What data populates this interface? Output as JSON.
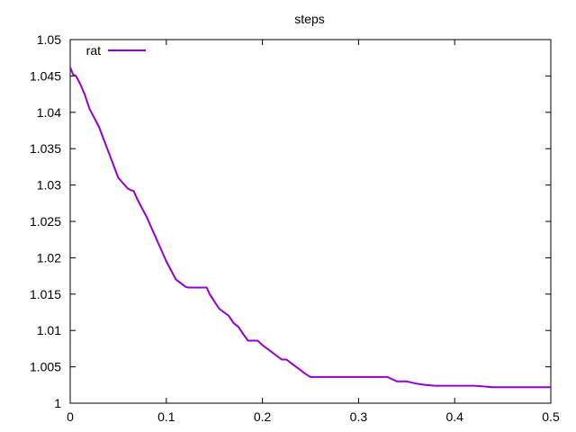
{
  "chart_data": {
    "type": "line",
    "title": "steps",
    "xlabel": "",
    "ylabel": "",
    "xlim": [
      0,
      0.5
    ],
    "ylim": [
      1,
      1.05
    ],
    "x_ticks": [
      {
        "value": 0,
        "label": "0"
      },
      {
        "value": 0.1,
        "label": "0.1"
      },
      {
        "value": 0.2,
        "label": "0.2"
      },
      {
        "value": 0.3,
        "label": "0.3"
      },
      {
        "value": 0.4,
        "label": "0.4"
      },
      {
        "value": 0.5,
        "label": "0.5"
      }
    ],
    "y_ticks": [
      {
        "value": 1,
        "label": "1"
      },
      {
        "value": 1.005,
        "label": "1.005"
      },
      {
        "value": 1.01,
        "label": "1.01"
      },
      {
        "value": 1.015,
        "label": "1.015"
      },
      {
        "value": 1.02,
        "label": "1.02"
      },
      {
        "value": 1.025,
        "label": "1.025"
      },
      {
        "value": 1.03,
        "label": "1.03"
      },
      {
        "value": 1.035,
        "label": "1.035"
      },
      {
        "value": 1.04,
        "label": "1.04"
      },
      {
        "value": 1.045,
        "label": "1.045"
      },
      {
        "value": 1.05,
        "label": "1.05"
      }
    ],
    "grid": false,
    "legend_position": "top-left",
    "series": [
      {
        "name": "rat",
        "color": "#9400d3",
        "x": [
          0,
          0.003,
          0.006,
          0.01,
          0.015,
          0.02,
          0.03,
          0.04,
          0.05,
          0.06,
          0.063,
          0.066,
          0.07,
          0.08,
          0.09,
          0.1,
          0.11,
          0.12,
          0.123,
          0.13,
          0.142,
          0.145,
          0.15,
          0.155,
          0.16,
          0.165,
          0.17,
          0.175,
          0.18,
          0.185,
          0.19,
          0.195,
          0.2,
          0.205,
          0.21,
          0.215,
          0.22,
          0.225,
          0.23,
          0.235,
          0.24,
          0.245,
          0.25,
          0.3,
          0.33,
          0.34,
          0.35,
          0.36,
          0.37,
          0.38,
          0.4,
          0.42,
          0.43,
          0.44,
          0.45,
          0.5
        ],
        "y": [
          1.0462,
          1.0452,
          1.045,
          1.044,
          1.0425,
          1.0405,
          1.038,
          1.0345,
          1.031,
          1.0295,
          1.0293,
          1.0292,
          1.028,
          1.0255,
          1.0225,
          1.0195,
          1.017,
          1.016,
          1.0159,
          1.0159,
          1.0159,
          1.015,
          1.014,
          1.013,
          1.0125,
          1.012,
          1.011,
          1.0105,
          1.0095,
          1.0086,
          1.0086,
          1.0086,
          1.008,
          1.0075,
          1.007,
          1.0065,
          1.006,
          1.006,
          1.0055,
          1.005,
          1.0045,
          1.004,
          1.0036,
          1.0036,
          1.0036,
          1.003,
          1.003,
          1.0027,
          1.0025,
          1.0024,
          1.0024,
          1.0024,
          1.0023,
          1.0022,
          1.0022,
          1.0022
        ]
      }
    ]
  }
}
